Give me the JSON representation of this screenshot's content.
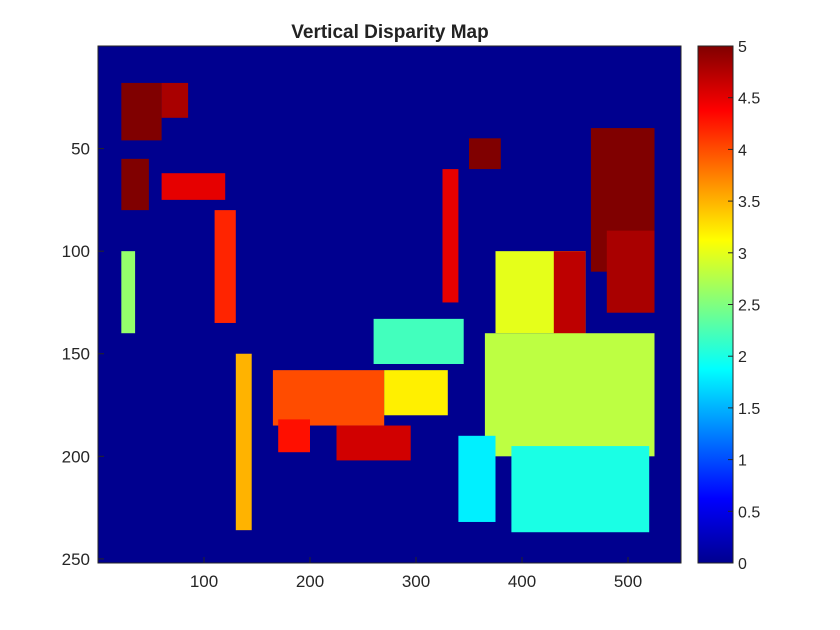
{
  "chart_data": {
    "type": "heatmap",
    "title": "Vertical Disparity Map",
    "xlabel": "",
    "ylabel": "",
    "xlim": [
      0,
      550
    ],
    "ylim": [
      252,
      0
    ],
    "x_ticks": [
      "100",
      "200",
      "300",
      "400",
      "500"
    ],
    "y_ticks": [
      "50",
      "100",
      "150",
      "200",
      "250"
    ],
    "colormap": "jet",
    "clim": [
      0,
      5
    ],
    "colorbar_ticks": [
      "0",
      "0.5",
      "1",
      "1.5",
      "2",
      "2.5",
      "3",
      "3.5",
      "4",
      "4.5",
      "5"
    ],
    "background_value": 0,
    "image_extent": {
      "x": [
        20,
        525
      ],
      "y": [
        16,
        238
      ]
    },
    "regions": [
      {
        "x": [
          22,
          60
        ],
        "y": [
          18,
          46
        ],
        "value": 5
      },
      {
        "x": [
          60,
          85
        ],
        "y": [
          18,
          35
        ],
        "value": 4.8
      },
      {
        "x": [
          22,
          48
        ],
        "y": [
          55,
          80
        ],
        "value": 5
      },
      {
        "x": [
          60,
          120
        ],
        "y": [
          62,
          75
        ],
        "value": 4.5
      },
      {
        "x": [
          110,
          130
        ],
        "y": [
          80,
          135
        ],
        "value": 4.2
      },
      {
        "x": [
          350,
          380
        ],
        "y": [
          45,
          60
        ],
        "value": 5
      },
      {
        "x": [
          325,
          340
        ],
        "y": [
          60,
          125
        ],
        "value": 4.5
      },
      {
        "x": [
          465,
          525
        ],
        "y": [
          40,
          110
        ],
        "value": 5
      },
      {
        "x": [
          480,
          525
        ],
        "y": [
          90,
          130
        ],
        "value": 4.8
      },
      {
        "x": [
          260,
          345
        ],
        "y": [
          133,
          155
        ],
        "value": 2.2
      },
      {
        "x": [
          165,
          270
        ],
        "y": [
          158,
          185
        ],
        "value": 4.0
      },
      {
        "x": [
          270,
          330
        ],
        "y": [
          158,
          180
        ],
        "value": 3.2
      },
      {
        "x": [
          170,
          200
        ],
        "y": [
          182,
          198
        ],
        "value": 4.3
      },
      {
        "x": [
          225,
          295
        ],
        "y": [
          185,
          202
        ],
        "value": 4.6
      },
      {
        "x": [
          375,
          460
        ],
        "y": [
          100,
          140
        ],
        "value": 3.0
      },
      {
        "x": [
          430,
          460
        ],
        "y": [
          100,
          145
        ],
        "value": 4.7
      },
      {
        "x": [
          365,
          525
        ],
        "y": [
          140,
          200
        ],
        "value": 2.8
      },
      {
        "x": [
          390,
          520
        ],
        "y": [
          195,
          237
        ],
        "value": 2.0
      },
      {
        "x": [
          130,
          145
        ],
        "y": [
          150,
          236
        ],
        "value": 3.5
      },
      {
        "x": [
          340,
          375
        ],
        "y": [
          190,
          232
        ],
        "value": 1.8
      },
      {
        "x": [
          22,
          35
        ],
        "y": [
          100,
          140
        ],
        "value": 2.6
      }
    ]
  }
}
